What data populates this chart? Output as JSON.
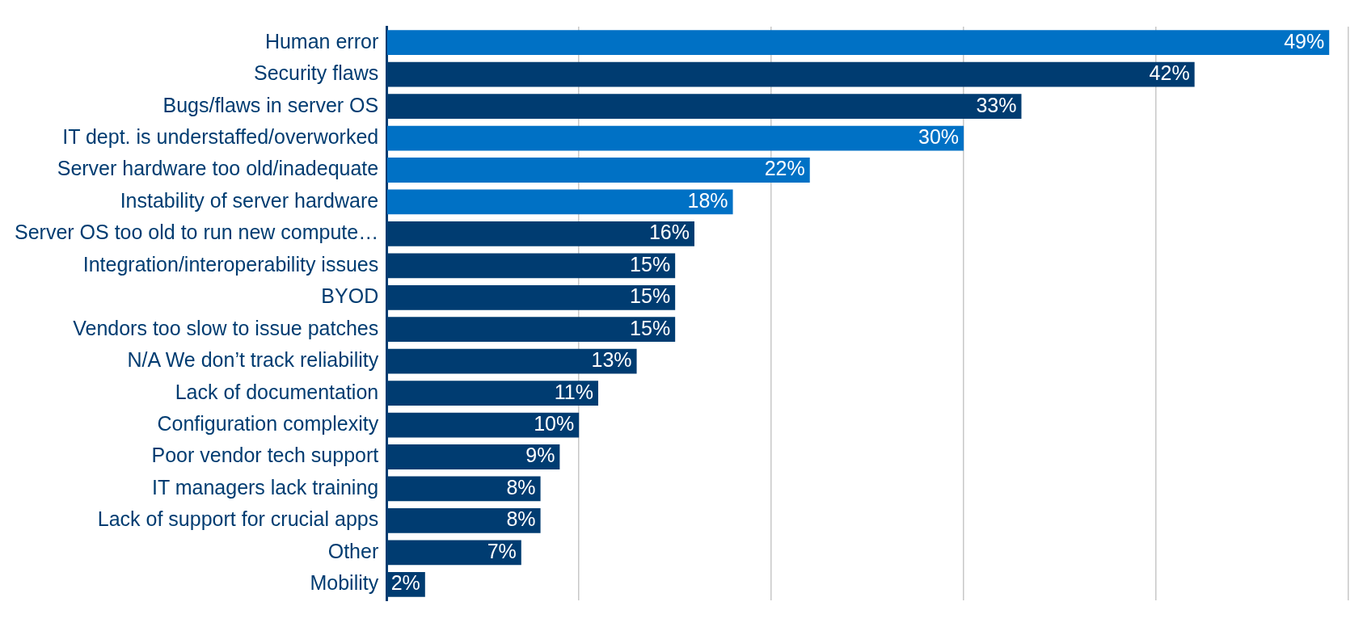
{
  "chart_data": {
    "type": "bar",
    "orientation": "horizontal",
    "categories": [
      "Human error",
      "Security flaws",
      "Bugs/flaws in server OS",
      "IT dept. is understaffed/overworked",
      "Server hardware too old/inadequate",
      "Instability of server hardware",
      "Server OS too old to run new compute…",
      "Integration/interoperability issues",
      "BYOD",
      "Vendors too slow to issue patches",
      "N/A We don’t track reliability",
      "Lack of documentation",
      "Configuration complexity",
      "Poor vendor tech support",
      "IT managers lack training",
      "Lack of support for crucial apps",
      "Other",
      "Mobility"
    ],
    "values": [
      49,
      42,
      33,
      30,
      22,
      18,
      16,
      15,
      15,
      15,
      13,
      11,
      10,
      9,
      8,
      8,
      7,
      2
    ],
    "colors": [
      "#0071c5",
      "#003c71",
      "#003c71",
      "#0071c5",
      "#0071c5",
      "#0071c5",
      "#003c71",
      "#003c71",
      "#003c71",
      "#003c71",
      "#003c71",
      "#003c71",
      "#003c71",
      "#003c71",
      "#003c71",
      "#003c71",
      "#003c71",
      "#003c71"
    ],
    "value_labels": [
      "49%",
      "42%",
      "33%",
      "30%",
      "22%",
      "18%",
      "16%",
      "15%",
      "15%",
      "15%",
      "13%",
      "11%",
      "10%",
      "9%",
      "8%",
      "8%",
      "7%",
      "2%"
    ],
    "xlim": [
      0,
      50
    ],
    "xticks": [
      {
        "value": 0,
        "label": null
      },
      {
        "value": 10,
        "label": null
      },
      {
        "value": 20,
        "label": null
      },
      {
        "value": 30,
        "label": null
      },
      {
        "value": 40,
        "label": null
      },
      {
        "value": 50,
        "label": null
      }
    ],
    "grid": "x",
    "tick_labels": "y"
  }
}
